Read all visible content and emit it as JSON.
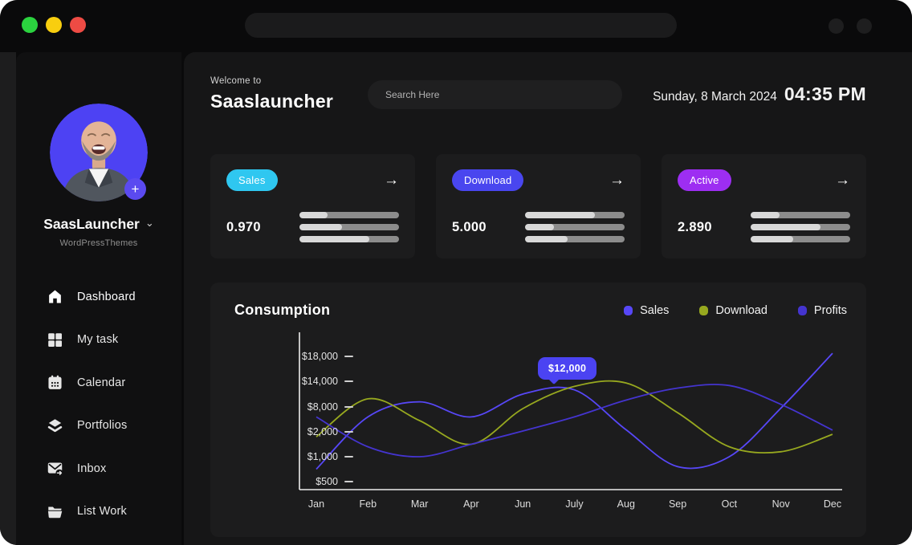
{
  "icons": {
    "arrow_right": "→",
    "plus": "+",
    "chevron_down": "⌄"
  },
  "colors": {
    "traffic_green": "#2bd33f",
    "traffic_yellow": "#f8ce0f",
    "traffic_red": "#ee4b44",
    "accent_indigo": "#4d42f3",
    "card_bg": "#1c1c1d",
    "tooltip_bg": "#4b43f2"
  },
  "sidebar": {
    "profile": {
      "name": "SaasLauncher",
      "subtitle": "WordPressThemes"
    },
    "items": [
      {
        "label": "Dashboard",
        "icon": "home-icon",
        "active": true
      },
      {
        "label": "My task",
        "icon": "grid-icon",
        "active": false
      },
      {
        "label": "Calendar",
        "icon": "calendar-icon",
        "active": false
      },
      {
        "label": "Portfolios",
        "icon": "layers-icon",
        "active": false
      },
      {
        "label": "Inbox",
        "icon": "inbox-icon",
        "active": false
      },
      {
        "label": "List Work",
        "icon": "folder-icon",
        "active": false
      }
    ]
  },
  "header": {
    "welcome": "Welcome to",
    "title": "Saaslauncher",
    "search_placeholder": "Search Here",
    "date": "Sunday, 8 March 2024",
    "time": "04:35 PM"
  },
  "stats": [
    {
      "label": "Sales",
      "badge_color": "#2fc7f0",
      "value": "0.970",
      "bars": [
        "28%",
        "43%",
        "70%"
      ]
    },
    {
      "label": "Download",
      "badge_color": "#4946ef",
      "value": "5.000",
      "bars": [
        "70%",
        "29%",
        "43%"
      ]
    },
    {
      "label": "Active",
      "badge_color": "#9d2ef2",
      "value": "2.890",
      "bars": [
        "29%",
        "70%",
        "43%"
      ]
    }
  ],
  "chart_data": {
    "type": "line",
    "title": "Consumption",
    "x_labels": [
      "Jan",
      "Feb",
      "Mar",
      "Apr",
      "Jun",
      "July",
      "Aug",
      "Sep",
      "Oct",
      "Nov",
      "Dec"
    ],
    "y_tick_labels": [
      "$500",
      "$1,000",
      "$2,000",
      "$8,000",
      "$14,000",
      "$18,000"
    ],
    "y_tick_values": [
      500,
      1000,
      2000,
      8000,
      14000,
      18000
    ],
    "grid": false,
    "legend_position": "top-right",
    "series": [
      {
        "name": "Sales",
        "color": "#5747f7",
        "values": [
          750,
          5600,
          9200,
          5600,
          11000,
          12000,
          2500,
          800,
          1000,
          7700,
          18500
        ]
      },
      {
        "name": "Download",
        "color": "#97a81f",
        "values": [
          1800,
          9900,
          4700,
          1500,
          7600,
          12800,
          13600,
          6600,
          1400,
          1200,
          1900
        ]
      },
      {
        "name": "Profits",
        "color": "#4434cf",
        "values": [
          5600,
          1400,
          1000,
          1500,
          2200,
          5600,
          9600,
          12400,
          13000,
          8600,
          2400
        ]
      }
    ],
    "tooltip": {
      "label": "$12,000",
      "series": "Sales",
      "month": "July"
    }
  }
}
